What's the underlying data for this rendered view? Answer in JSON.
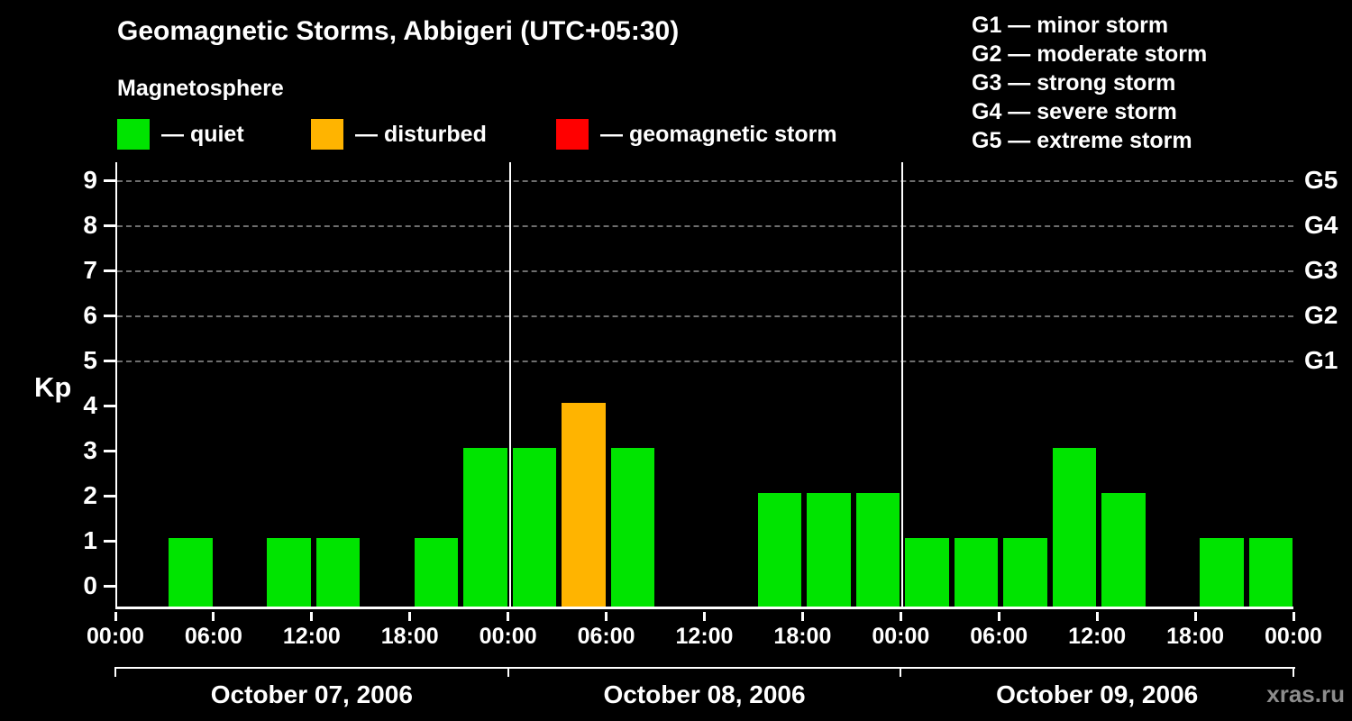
{
  "title": "Geomagnetic Storms, Abbigeri (UTC+05:30)",
  "subtitle": "Magnetosphere",
  "watermark": "xras.ru",
  "legend": {
    "items": [
      {
        "label": "— quiet",
        "color": "#00e400"
      },
      {
        "label": "— disturbed",
        "color": "#ffb400"
      },
      {
        "label": "— geomagnetic storm",
        "color": "#ff0000"
      }
    ]
  },
  "storm_scale_legend": [
    "G1 — minor storm",
    "G2 — moderate storm",
    "G3 — strong storm",
    "G4 — severe storm",
    "G5 — extreme storm"
  ],
  "colors": {
    "quiet": "#00e400",
    "disturbed": "#ffb400",
    "storm": "#ff0000",
    "background": "#000000",
    "text": "#ffffff",
    "grid": "#6e6e6e",
    "watermark": "#8d8d8d"
  },
  "chart_data": {
    "type": "bar",
    "title": "Geomagnetic Storms, Abbigeri (UTC+05:30)",
    "ylabel": "Kp",
    "ylim": [
      0,
      9.5
    ],
    "y_ticks": [
      0,
      1,
      2,
      3,
      4,
      5,
      6,
      7,
      8,
      9
    ],
    "gridlines_kp": [
      5,
      6,
      7,
      8,
      9
    ],
    "right_axis_labels": [
      {
        "label": "G5",
        "kp": 9
      },
      {
        "label": "G4",
        "kp": 8
      },
      {
        "label": "G3",
        "kp": 7
      },
      {
        "label": "G2",
        "kp": 6
      },
      {
        "label": "G1",
        "kp": 5
      }
    ],
    "x_tick_labels": [
      "00:00",
      "06:00",
      "12:00",
      "18:00",
      "00:00",
      "06:00",
      "12:00",
      "18:00",
      "00:00",
      "06:00",
      "12:00",
      "18:00",
      "00:00"
    ],
    "interval_hours": 3,
    "days": [
      {
        "label": "October 07, 2006",
        "kp_values": [
          0,
          1,
          0,
          1,
          1,
          0,
          1,
          3
        ]
      },
      {
        "label": "October 08, 2006",
        "kp_values": [
          3,
          4,
          3,
          0,
          0,
          2,
          2,
          2
        ]
      },
      {
        "label": "October 09, 2006",
        "kp_values": [
          1,
          1,
          1,
          3,
          2,
          0,
          1,
          1
        ]
      }
    ],
    "color_rules": {
      "quiet_max_kp": 3,
      "disturbed_max_kp": 4
    },
    "legend_position": "top",
    "grid": "dashed-horizontal-on-storm-levels"
  }
}
